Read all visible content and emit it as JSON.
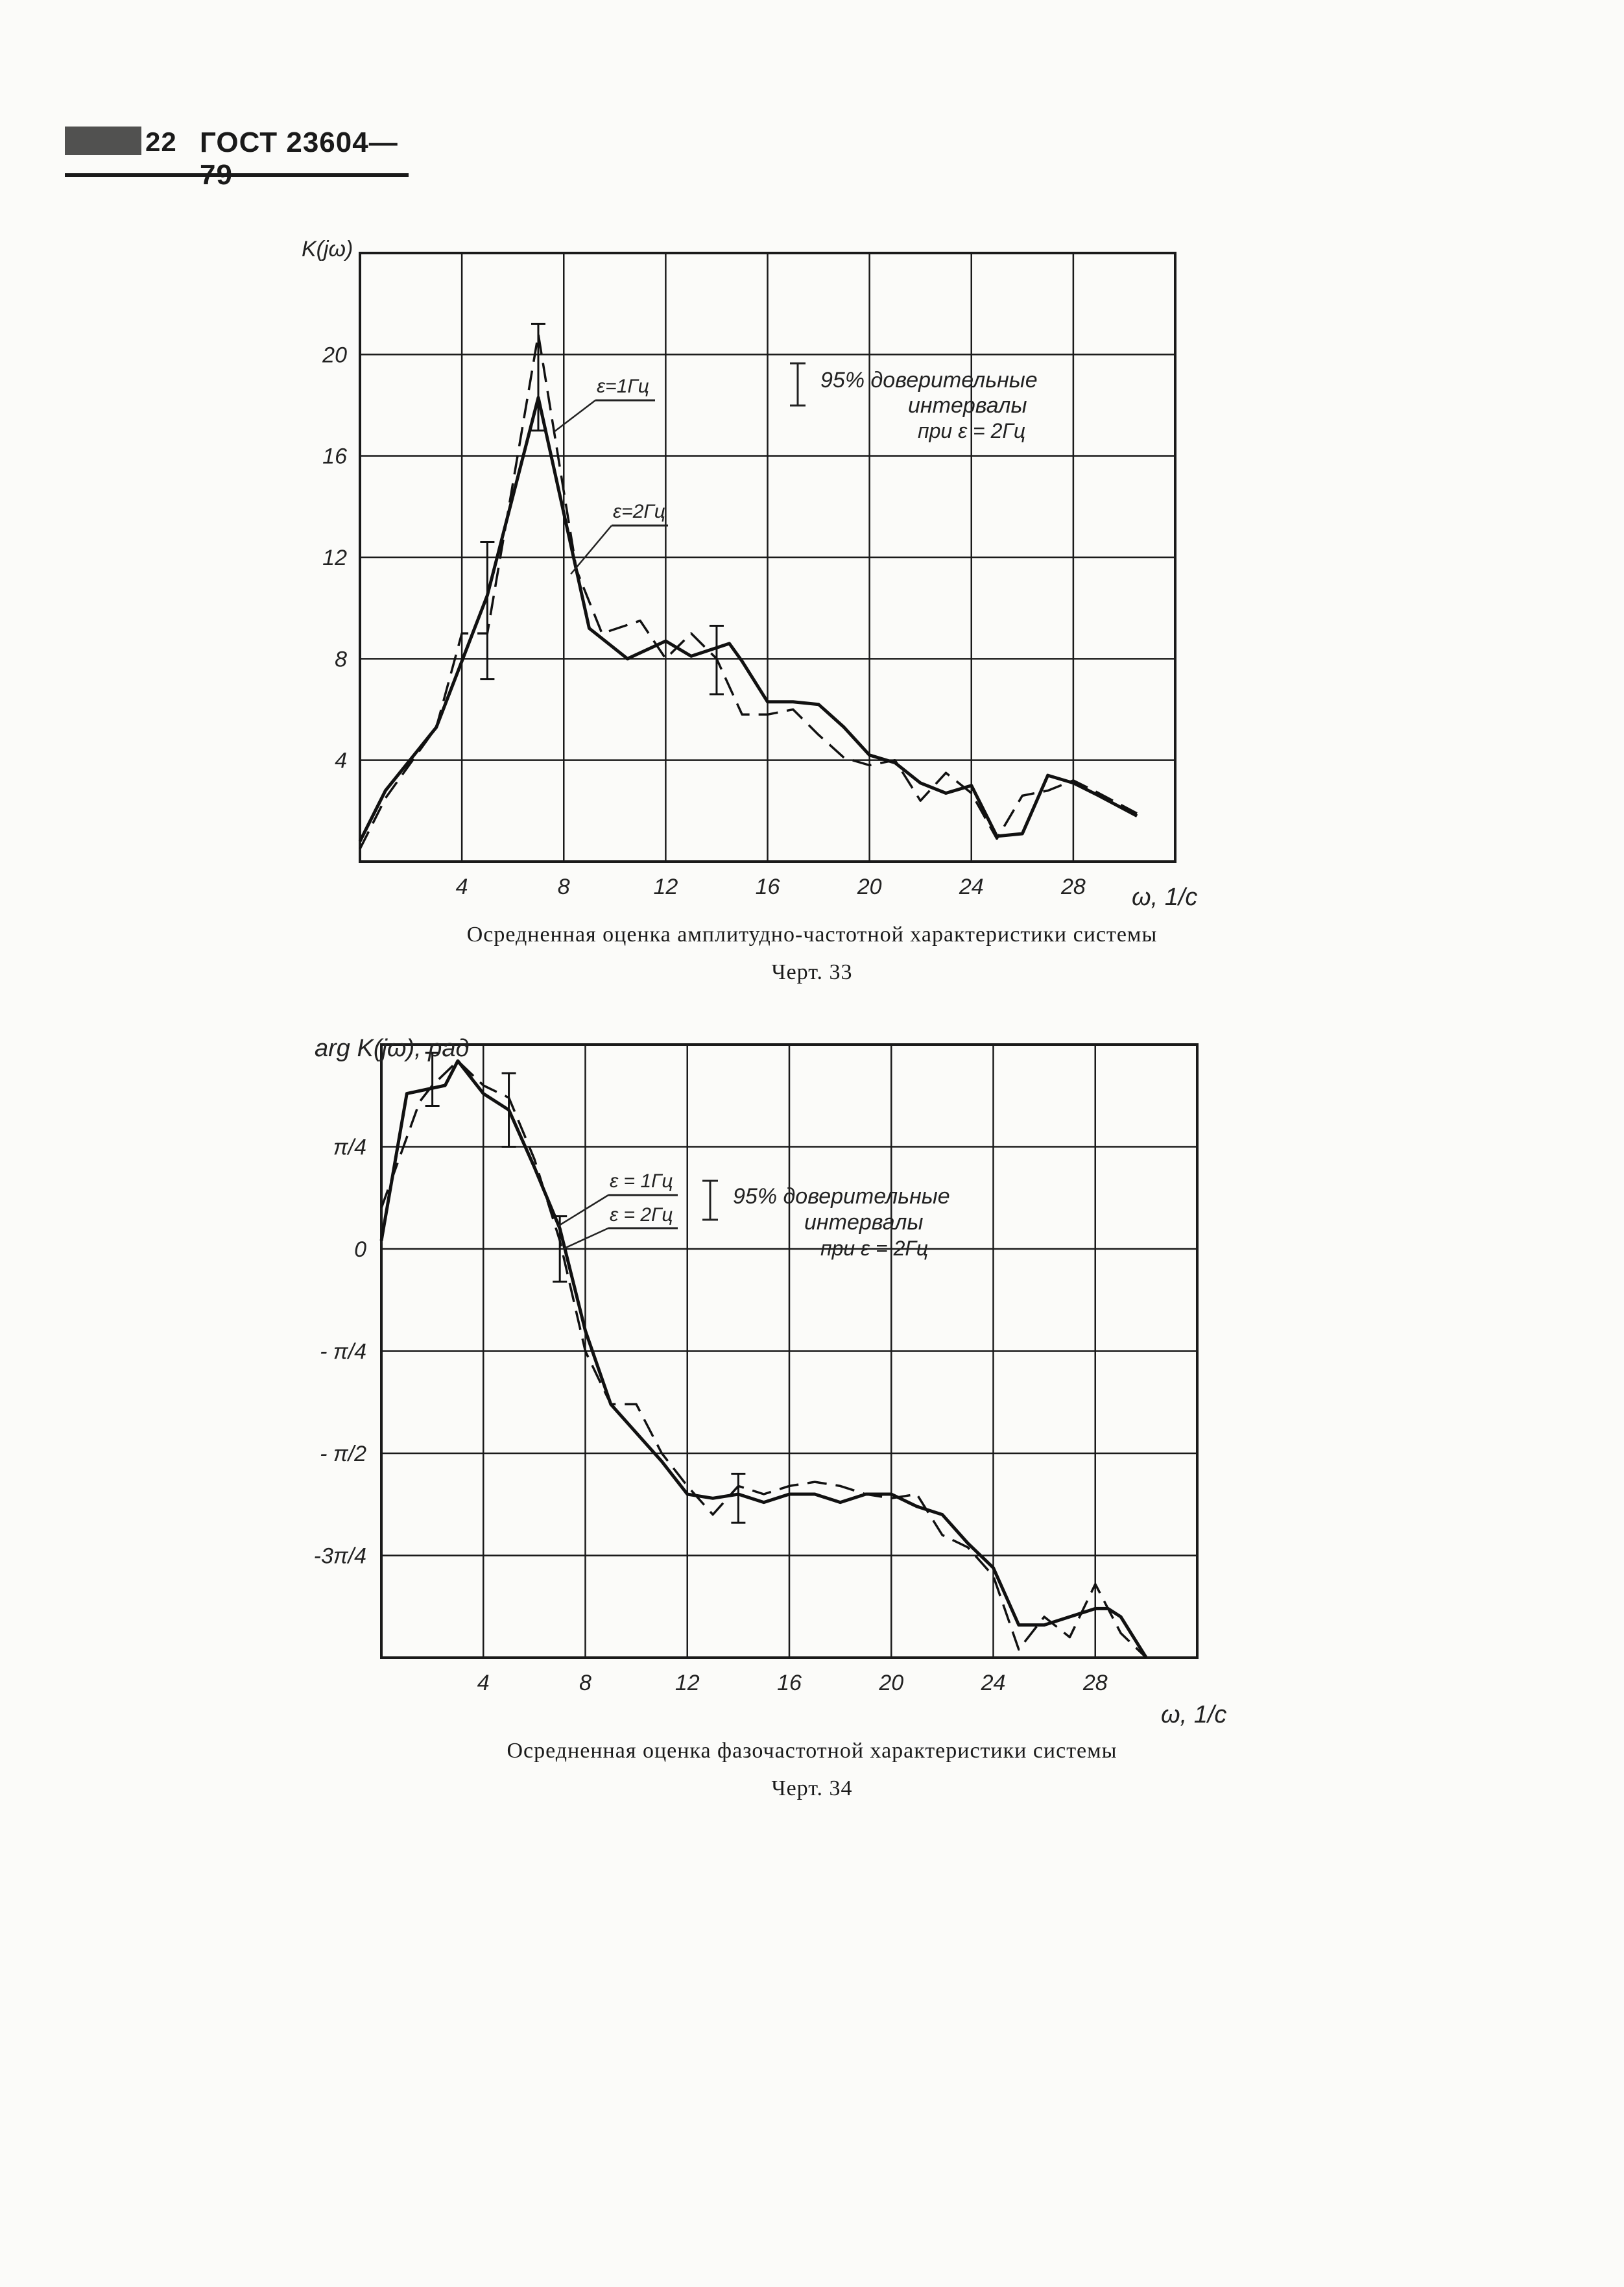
{
  "header": {
    "page_number": "22",
    "standard": "ГОСТ 23604—79"
  },
  "chart_data": [
    {
      "type": "line",
      "ylabel": "K(jω)",
      "xlabel": "ω, 1/c",
      "xlim": [
        0,
        32
      ],
      "ylim": [
        0,
        24
      ],
      "x_ticks": [
        4,
        8,
        12,
        16,
        20,
        24,
        28
      ],
      "y_ticks": [
        {
          "value": 4,
          "label": "4"
        },
        {
          "value": 8,
          "label": "8"
        },
        {
          "value": 12,
          "label": "12"
        },
        {
          "value": 16,
          "label": "16"
        },
        {
          "value": 20,
          "label": "20"
        }
      ],
      "series": [
        {
          "name": "ε=1Гц",
          "style": "solid",
          "x": [
            0,
            1,
            3,
            5,
            7,
            9,
            10.5,
            12,
            13,
            14.5,
            15,
            16,
            17,
            18,
            19,
            20,
            21,
            22,
            23,
            24,
            25,
            26,
            27,
            28,
            29,
            30.5
          ],
          "y": [
            0.8,
            2.8,
            5.3,
            10.5,
            18.3,
            9.2,
            8.0,
            8.7,
            8.1,
            8.6,
            7.9,
            6.3,
            6.3,
            6.2,
            5.3,
            4.2,
            3.9,
            3.1,
            2.7,
            3.0,
            1.0,
            1.1,
            3.4,
            3.1,
            2.6,
            1.8
          ]
        },
        {
          "name": "ε=2Гц",
          "style": "dashed",
          "x": [
            0,
            1,
            3,
            4,
            5,
            7,
            8.5,
            9.5,
            11,
            12,
            13,
            14,
            15,
            16,
            17,
            18,
            19,
            20,
            21,
            22,
            23,
            24,
            25,
            26,
            27,
            28,
            29,
            30.5
          ],
          "y": [
            0.5,
            2.5,
            5.3,
            9.0,
            9.0,
            20.8,
            11.5,
            9.0,
            9.5,
            8.0,
            9.0,
            8.0,
            5.8,
            5.8,
            6.0,
            5.0,
            4.1,
            3.8,
            4.0,
            2.4,
            3.5,
            2.7,
            0.9,
            2.6,
            2.8,
            3.2,
            2.7,
            1.9
          ]
        }
      ],
      "error_bars": [
        {
          "x": 5,
          "low": 7.2,
          "high": 12.6
        },
        {
          "x": 7,
          "low": 17.0,
          "high": 21.2
        },
        {
          "x": 14,
          "low": 6.6,
          "high": 9.3
        }
      ],
      "annotations": {
        "label_series_1": "ε=1Гц",
        "label_series_2": "ε=2Гц",
        "legend_line1": "95% доверительные",
        "legend_line2": "интервалы",
        "legend_line3": "при ε = 2Гц"
      },
      "caption": "Осредненная оценка амплитудно-частотной характеристики системы",
      "figure_label": "Черт. 33"
    },
    {
      "type": "line",
      "ylabel": "arg K(jω), рад",
      "xlabel": "ω, 1/c",
      "xlim": [
        0,
        32
      ],
      "ylim": [
        -1.0,
        0.5
      ],
      "x_ticks": [
        4,
        8,
        12,
        16,
        20,
        24,
        28
      ],
      "y_ticks": [
        {
          "value": 0.25,
          "label": "π/4"
        },
        {
          "value": 0,
          "label": "0"
        },
        {
          "value": -0.25,
          "label": "- π/4"
        },
        {
          "value": -0.5,
          "label": "- π/2"
        },
        {
          "value": -0.75,
          "label": "-3π/4"
        }
      ],
      "series": [
        {
          "name": "ε=1Гц",
          "style": "solid",
          "x": [
            0,
            1,
            2.5,
            3,
            4,
            5,
            6,
            7,
            8,
            9,
            10,
            11,
            12,
            13,
            14,
            15,
            16,
            17,
            18,
            19,
            20,
            21,
            22,
            23,
            24,
            25,
            26,
            27,
            28,
            28.5,
            29,
            30
          ],
          "y": [
            0.02,
            0.38,
            0.4,
            0.46,
            0.38,
            0.34,
            0.2,
            0.05,
            -0.2,
            -0.38,
            -0.45,
            -0.52,
            -0.6,
            -0.61,
            -0.6,
            -0.62,
            -0.6,
            -0.6,
            -0.62,
            -0.6,
            -0.6,
            -0.63,
            -0.65,
            -0.72,
            -0.78,
            -0.92,
            -0.92,
            -0.9,
            -0.88,
            -0.88,
            -0.9,
            -1.0
          ]
        },
        {
          "name": "ε=2Гц",
          "style": "dashed",
          "x": [
            0,
            1.5,
            2,
            3,
            4,
            5,
            6,
            7,
            8,
            9,
            10,
            11,
            12,
            13,
            14,
            15,
            16,
            17,
            18,
            19,
            20,
            21,
            22,
            23,
            24,
            25,
            26,
            27,
            28,
            29,
            30
          ],
          "y": [
            0.1,
            0.36,
            0.4,
            0.46,
            0.4,
            0.37,
            0.22,
            0.02,
            -0.25,
            -0.38,
            -0.38,
            -0.5,
            -0.58,
            -0.65,
            -0.58,
            -0.6,
            -0.58,
            -0.57,
            -0.58,
            -0.6,
            -0.61,
            -0.6,
            -0.7,
            -0.73,
            -0.8,
            -0.98,
            -0.9,
            -0.95,
            -0.82,
            -0.94,
            -1.0
          ]
        }
      ],
      "error_bars": [
        {
          "x": 2,
          "low": 0.35,
          "high": 0.48
        },
        {
          "x": 5,
          "low": 0.25,
          "high": 0.43
        },
        {
          "x": 7,
          "low": -0.08,
          "high": 0.08
        },
        {
          "x": 14,
          "low": -0.67,
          "high": -0.55
        }
      ],
      "annotations": {
        "label_series_1": "ε = 1Гц",
        "label_series_2": "ε = 2Гц",
        "legend_line1": "95% доверительные",
        "legend_line2": "интервалы",
        "legend_line3": "при ε = 2Гц"
      },
      "caption": "Осредненная оценка фазочастотной характеристики системы",
      "figure_label": "Черт. 34"
    }
  ]
}
